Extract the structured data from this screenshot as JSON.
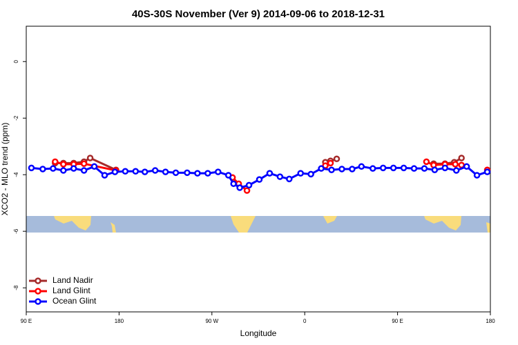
{
  "chart_data": {
    "type": "line",
    "title": "40S-30S November (Ver 9)   2014-09-06 to 2018-12-31",
    "x_label": "Longitude",
    "y_label": "XCO2 - MLO trend (ppm)",
    "xlim": [
      90,
      540
    ],
    "ylim": [
      -8.85,
      1.25
    ],
    "xticks": [
      {
        "value": 90,
        "label": "90 E"
      },
      180,
      {
        "value": 270,
        "label": "90 W"
      },
      {
        "value": 360,
        "label": "0"
      },
      {
        "value": 450,
        "label": "90 E"
      },
      {
        "value": 540,
        "label": "180"
      }
    ],
    "yticks": [
      -8,
      -6,
      -4,
      -2,
      0
    ],
    "legend_position": "bottom-left",
    "series": [
      {
        "name": "Land Nadir",
        "color": "#a52a2a",
        "x": [
          118,
          126,
          136,
          146,
          152,
          177,
          null,
          380,
          385,
          391,
          null,
          485,
          496,
          505,
          512
        ],
        "values": [
          -3.59,
          -3.59,
          -3.59,
          -3.54,
          -3.41,
          -3.83,
          null,
          -3.56,
          -3.51,
          -3.44,
          null,
          -3.61,
          -3.61,
          -3.56,
          -3.41
        ]
      },
      {
        "name": "Land Glint",
        "color": "#ff0000",
        "x": [
          118,
          126,
          136,
          146,
          177,
          null,
          290,
          296,
          304,
          null,
          380,
          385,
          null,
          478,
          485,
          496,
          506,
          512,
          null,
          537
        ],
        "values": [
          -3.54,
          -3.63,
          -3.63,
          -3.61,
          -3.85,
          null,
          -4.1,
          -4.32,
          -4.56,
          null,
          -3.68,
          -3.59,
          null,
          -3.54,
          -3.66,
          -3.63,
          -3.63,
          -3.66,
          null,
          -3.83
        ]
      },
      {
        "name": "Ocean Glint",
        "color": "#0000ff",
        "x": [
          95,
          106,
          116,
          126,
          136,
          146,
          156,
          166,
          176,
          186,
          196,
          205,
          215,
          225,
          235,
          246,
          256,
          266,
          276,
          286,
          291,
          297,
          306,
          316,
          326,
          336,
          345,
          356,
          366,
          376,
          386,
          396,
          406,
          415,
          426,
          436,
          446,
          456,
          466,
          476,
          486,
          496,
          507,
          517,
          527,
          537
        ],
        "values": [
          -3.76,
          -3.8,
          -3.78,
          -3.85,
          -3.78,
          -3.85,
          -3.71,
          -4.02,
          -3.9,
          -3.88,
          -3.88,
          -3.9,
          -3.85,
          -3.9,
          -3.93,
          -3.93,
          -3.95,
          -3.95,
          -3.9,
          -4.02,
          -4.32,
          -4.46,
          -4.37,
          -4.17,
          -3.95,
          -4.07,
          -4.15,
          -3.95,
          -3.98,
          -3.78,
          -3.83,
          -3.8,
          -3.8,
          -3.71,
          -3.78,
          -3.76,
          -3.76,
          -3.76,
          -3.78,
          -3.78,
          -3.83,
          -3.76,
          -3.85,
          -3.71,
          -4.02,
          -3.9
        ]
      }
    ]
  }
}
